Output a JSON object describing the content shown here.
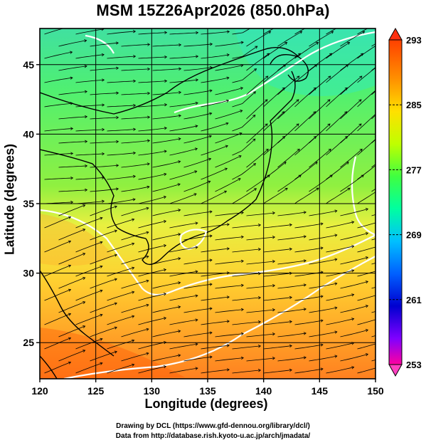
{
  "title": "MSM 15Z26Apr2026 (850.0hPa)",
  "x_axis": {
    "label": "Longitude (degrees)",
    "ticks": [
      "120",
      "125",
      "130",
      "135",
      "140",
      "145",
      "150"
    ],
    "range": [
      120,
      150
    ]
  },
  "y_axis": {
    "label": "Latitude  (degrees)",
    "ticks": [
      "25",
      "30",
      "35",
      "40",
      "45"
    ],
    "range": [
      22.4,
      47.6
    ]
  },
  "colorbar": {
    "labels": [
      "293",
      "285",
      "277",
      "269",
      "261",
      "253"
    ],
    "range": [
      253,
      293
    ],
    "colors": [
      "#ff0080",
      "#8000ff",
      "#0000ff",
      "#0080ff",
      "#00e0e0",
      "#00ff80",
      "#40ff40",
      "#c0ff00",
      "#ffff00",
      "#ffa000",
      "#ff4000"
    ]
  },
  "field": "temperature (K) with wind streamlines",
  "credits": [
    "Drawing by DCL (https://www.gfd-dennou.org/library/dcl/)",
    "Data from http://database.rish.kyoto-u.ac.jp/arch/jmadata/"
  ]
}
